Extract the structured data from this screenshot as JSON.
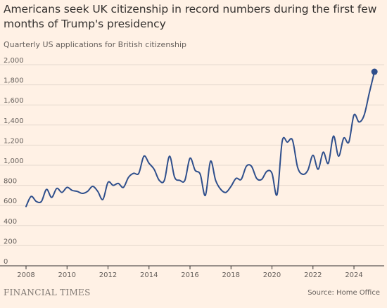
{
  "header": {
    "title": "Americans seek UK citizenship in record numbers during the first few months of Trump's presidency",
    "subtitle": "Quarterly US applications for British citizenship"
  },
  "footer": {
    "brand": "FINANCIAL TIMES",
    "source": "Source: Home Office"
  },
  "colors": {
    "line": "#2f4f8c",
    "grid": "#e6d9ce",
    "axis": "#33302e",
    "background": "#fff1e5"
  },
  "chart_data": {
    "type": "line",
    "title": "Americans seek UK citizenship in record numbers during the first few months of Trump's presidency",
    "subtitle": "Quarterly US applications for British citizenship",
    "xlabel": "",
    "ylabel": "",
    "xlim": [
      2008,
      2025.2
    ],
    "ylim": [
      0,
      2000
    ],
    "y_ticks": [
      0,
      200,
      400,
      600,
      800,
      1000,
      1200,
      1400,
      1600,
      1800,
      2000
    ],
    "y_tick_labels": [
      "0",
      "200",
      "400",
      "600",
      "800",
      "1,000",
      "1,200",
      "1,400",
      "1,600",
      "1,800",
      "2,000"
    ],
    "x_ticks": [
      2008,
      2010,
      2012,
      2014,
      2016,
      2018,
      2020,
      2022,
      2024
    ],
    "x_tick_labels": [
      "2008",
      "2010",
      "2012",
      "2014",
      "2016",
      "2018",
      "2020",
      "2022",
      "2024"
    ],
    "grid": true,
    "legend": "none",
    "series": [
      {
        "x": [
          2008.0,
          2008.25,
          2008.5,
          2008.75,
          2009.0,
          2009.25,
          2009.5,
          2009.75,
          2010.0,
          2010.25,
          2010.5,
          2010.75,
          2011.0,
          2011.25,
          2011.5,
          2011.75,
          2012.0,
          2012.25,
          2012.5,
          2012.75,
          2013.0,
          2013.25,
          2013.5,
          2013.75,
          2014.0,
          2014.25,
          2014.5,
          2014.75,
          2015.0,
          2015.25,
          2015.5,
          2015.75,
          2016.0,
          2016.25,
          2016.5,
          2016.75,
          2017.0,
          2017.25,
          2017.5,
          2017.75,
          2018.0,
          2018.25,
          2018.5,
          2018.75,
          2019.0,
          2019.25,
          2019.5,
          2019.75,
          2020.0,
          2020.25,
          2020.5,
          2020.75,
          2021.0,
          2021.25,
          2021.5,
          2021.75,
          2022.0,
          2022.25,
          2022.5,
          2022.75,
          2023.0,
          2023.25,
          2023.5,
          2023.75,
          2024.0,
          2024.25,
          2024.5,
          2024.75,
          2025.0
        ],
        "values": [
          590,
          690,
          640,
          640,
          760,
          680,
          770,
          730,
          780,
          750,
          740,
          720,
          740,
          790,
          740,
          660,
          830,
          800,
          820,
          780,
          880,
          920,
          920,
          1090,
          1020,
          960,
          850,
          850,
          1090,
          880,
          850,
          850,
          1070,
          950,
          910,
          700,
          1040,
          850,
          760,
          730,
          790,
          870,
          860,
          990,
          990,
          870,
          860,
          940,
          920,
          710,
          1240,
          1230,
          1250,
          980,
          910,
          950,
          1100,
          960,
          1130,
          1020,
          1290,
          1090,
          1270,
          1230,
          1500,
          1430,
          1500,
          1720,
          1930
        ]
      }
    ],
    "highlight_last_point": true
  }
}
